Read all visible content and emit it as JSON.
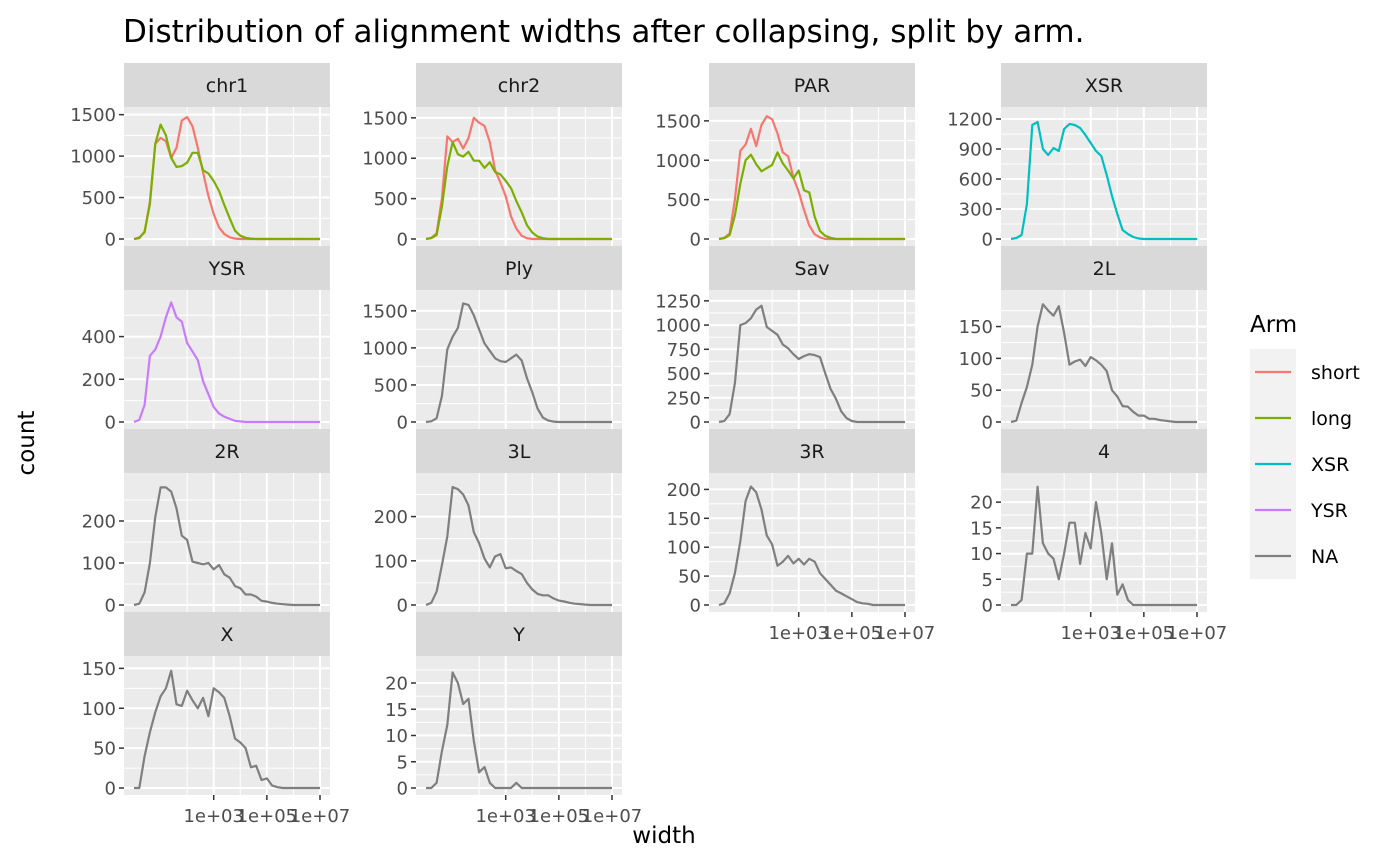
{
  "chart_data": {
    "type": "line",
    "title": "Distribution of alignment widths after collapsing, split by arm.",
    "xlabel": "width",
    "ylabel": "count",
    "x_scale": "log10",
    "x_range_log10": [
      0.0,
      7.0
    ],
    "x_ticks": [
      1000,
      100000,
      10000000
    ],
    "x_tick_labels": [
      "1e+03",
      "1e+05",
      "1e+07"
    ],
    "grid": true,
    "legend": {
      "title": "Arm",
      "position": "right",
      "entries": [
        "short",
        "long",
        "XSR",
        "YSR",
        "NA"
      ]
    },
    "colors": {
      "short": "#F8766D",
      "long": "#7CAE00",
      "XSR": "#00BFC4",
      "YSR": "#C77CFF",
      "NA": "#7F7F7F",
      "panel_bg": "#EBEBEB",
      "strip_bg": "#D9D9D9",
      "grid": "#FFFFFF"
    },
    "x_log10": [
      0.0,
      0.2,
      0.4,
      0.6,
      0.8,
      1.0,
      1.2,
      1.4,
      1.6,
      1.8,
      2.0,
      2.2,
      2.4,
      2.6,
      2.8,
      3.0,
      3.2,
      3.4,
      3.6,
      3.8,
      4.0,
      4.2,
      4.4,
      4.6,
      4.8,
      5.0,
      5.2,
      5.4,
      5.6,
      5.8,
      6.0,
      6.2,
      6.4,
      6.6,
      6.8,
      7.0
    ],
    "panels": [
      {
        "name": "chr1",
        "ylim": [
          0,
          1520
        ],
        "yticks": [
          0,
          500,
          1000,
          1500
        ],
        "x_axis": false,
        "series": [
          {
            "name": "short",
            "values": [
              0,
              20,
              80,
              450,
              1150,
              1220,
              1180,
              980,
              1100,
              1430,
              1470,
              1360,
              1100,
              800,
              520,
              300,
              140,
              60,
              20,
              5,
              0,
              0,
              0,
              0,
              0,
              0,
              0,
              0,
              0,
              0,
              0,
              0,
              0,
              0,
              0,
              0
            ]
          },
          {
            "name": "long",
            "values": [
              0,
              10,
              90,
              420,
              1150,
              1380,
              1250,
              980,
              870,
              880,
              920,
              1040,
              1040,
              830,
              790,
              700,
              580,
              410,
              250,
              100,
              40,
              15,
              5,
              0,
              0,
              0,
              0,
              0,
              0,
              0,
              0,
              0,
              0,
              0,
              0,
              0
            ]
          }
        ]
      },
      {
        "name": "chr2",
        "ylim": [
          0,
          1560
        ],
        "yticks": [
          0,
          500,
          1000,
          1500
        ],
        "x_axis": false,
        "series": [
          {
            "name": "short",
            "values": [
              0,
              15,
              70,
              500,
              1270,
              1200,
              1240,
              1120,
              1250,
              1500,
              1440,
              1400,
              1200,
              850,
              700,
              530,
              280,
              130,
              40,
              10,
              0,
              0,
              0,
              0,
              0,
              0,
              0,
              0,
              0,
              0,
              0,
              0,
              0,
              0,
              0,
              0
            ]
          },
          {
            "name": "long",
            "values": [
              0,
              10,
              50,
              400,
              900,
              1200,
              1050,
              1020,
              1080,
              970,
              970,
              880,
              950,
              830,
              800,
              720,
              630,
              470,
              330,
              170,
              80,
              30,
              10,
              0,
              0,
              0,
              0,
              0,
              0,
              0,
              0,
              0,
              0,
              0,
              0,
              0
            ]
          }
        ]
      },
      {
        "name": "PAR",
        "ylim": [
          0,
          1600
        ],
        "yticks": [
          0,
          500,
          1000,
          1500
        ],
        "x_axis": false,
        "series": [
          {
            "name": "short",
            "values": [
              0,
              15,
              70,
              500,
              1120,
              1200,
              1400,
              1180,
              1450,
              1560,
              1520,
              1340,
              1100,
              1050,
              780,
              600,
              370,
              170,
              60,
              20,
              0,
              0,
              0,
              0,
              0,
              0,
              0,
              0,
              0,
              0,
              0,
              0,
              0,
              0,
              0,
              0
            ]
          },
          {
            "name": "long",
            "values": [
              0,
              10,
              50,
              300,
              700,
              1000,
              1070,
              950,
              860,
              900,
              940,
              1100,
              960,
              870,
              770,
              870,
              620,
              590,
              280,
              100,
              40,
              15,
              0,
              0,
              0,
              0,
              0,
              0,
              0,
              0,
              0,
              0,
              0,
              0,
              0,
              0
            ]
          }
        ]
      },
      {
        "name": "XSR",
        "ylim": [
          0,
          1260
        ],
        "yticks": [
          0,
          300,
          600,
          900,
          1200
        ],
        "x_axis": false,
        "series": [
          {
            "name": "XSR",
            "values": [
              0,
              10,
              40,
              350,
              1140,
              1170,
              900,
              840,
              910,
              880,
              1100,
              1150,
              1140,
              1110,
              1040,
              960,
              880,
              830,
              640,
              430,
              250,
              90,
              50,
              20,
              5,
              0,
              0,
              0,
              0,
              0,
              0,
              0,
              0,
              0,
              0,
              0
            ]
          }
        ]
      },
      {
        "name": "YSR",
        "ylim": [
          0,
          590
        ],
        "yticks": [
          0,
          200,
          400
        ],
        "x_axis": false,
        "series": [
          {
            "name": "YSR",
            "values": [
              0,
              10,
              80,
              310,
              340,
              400,
              490,
              560,
              490,
              470,
              370,
              330,
              290,
              190,
              130,
              70,
              40,
              25,
              15,
              5,
              3,
              0,
              0,
              0,
              0,
              0,
              0,
              0,
              0,
              0,
              0,
              0,
              0,
              0,
              0,
              0
            ]
          }
        ]
      },
      {
        "name": "Ply",
        "ylim": [
          0,
          1700
        ],
        "yticks": [
          0,
          500,
          1000,
          1500
        ],
        "x_axis": false,
        "series": [
          {
            "name": "NA",
            "values": [
              0,
              10,
              50,
              350,
              980,
              1150,
              1270,
              1600,
              1580,
              1440,
              1250,
              1060,
              960,
              860,
              820,
              810,
              860,
              910,
              830,
              590,
              400,
              180,
              60,
              20,
              5,
              0,
              0,
              0,
              0,
              0,
              0,
              0,
              0,
              0,
              0,
              0
            ]
          }
        ]
      },
      {
        "name": "Sav",
        "ylim": [
          0,
          1300
        ],
        "yticks": [
          0,
          250,
          500,
          750,
          1000,
          1250
        ],
        "x_axis": false,
        "series": [
          {
            "name": "NA",
            "values": [
              0,
              10,
              80,
              400,
              1000,
              1020,
              1070,
              1160,
              1200,
              980,
              940,
              900,
              800,
              760,
              700,
              650,
              680,
              700,
              690,
              670,
              500,
              340,
              240,
              110,
              40,
              10,
              0,
              0,
              0,
              0,
              0,
              0,
              0,
              0,
              0,
              0
            ]
          }
        ]
      },
      {
        "name": "2L",
        "ylim": [
          0,
          198
        ],
        "yticks": [
          0,
          50,
          100,
          150
        ],
        "x_axis": false,
        "series": [
          {
            "name": "NA",
            "values": [
              0,
              2,
              30,
              55,
              90,
              150,
              185,
              175,
              167,
              182,
              140,
              90,
              95,
              98,
              88,
              102,
              97,
              90,
              80,
              50,
              40,
              25,
              24,
              16,
              10,
              10,
              5,
              5,
              3,
              2,
              1,
              0,
              0,
              0,
              0,
              0
            ]
          }
        ]
      },
      {
        "name": "2R",
        "ylim": [
          0,
          300
        ],
        "yticks": [
          0,
          100,
          200
        ],
        "x_axis": false,
        "series": [
          {
            "name": "NA",
            "values": [
              0,
              3,
              30,
              100,
              210,
              280,
              280,
              270,
              230,
              165,
              155,
              103,
              100,
              97,
              100,
              85,
              95,
              73,
              65,
              45,
              40,
              25,
              25,
              20,
              10,
              8,
              5,
              3,
              2,
              1,
              0,
              0,
              0,
              0,
              0,
              0
            ]
          }
        ]
      },
      {
        "name": "3L",
        "ylim": [
          0,
          285
        ],
        "yticks": [
          0,
          100,
          200
        ],
        "x_axis": false,
        "series": [
          {
            "name": "NA",
            "values": [
              0,
              5,
              30,
              90,
              155,
              267,
              262,
              250,
              225,
              165,
              140,
              105,
              85,
              110,
              115,
              83,
              85,
              77,
              70,
              50,
              35,
              25,
              22,
              22,
              15,
              10,
              8,
              5,
              3,
              2,
              1,
              0,
              0,
              0,
              0,
              0
            ]
          }
        ]
      },
      {
        "name": "3R",
        "ylim": [
          0,
          218
        ],
        "yticks": [
          0,
          50,
          100,
          150,
          200
        ],
        "x_axis": true,
        "series": [
          {
            "name": "NA",
            "values": [
              0,
              3,
              20,
              55,
              110,
              180,
              205,
              195,
              165,
              120,
              105,
              68,
              75,
              85,
              72,
              80,
              70,
              80,
              75,
              55,
              45,
              35,
              25,
              20,
              15,
              10,
              5,
              3,
              2,
              0,
              0,
              0,
              0,
              0,
              0,
              0
            ]
          }
        ]
      },
      {
        "name": "4",
        "ylim": [
          0,
          24.5
        ],
        "yticks": [
          0,
          5,
          10,
          15,
          20
        ],
        "x_axis": true,
        "series": [
          {
            "name": "NA",
            "values": [
              0,
              0,
              1,
              10,
              10,
              23,
              12,
              10,
              9,
              5,
              10,
              16,
              16,
              8,
              14,
              11,
              20,
              14,
              5,
              12,
              2,
              4,
              1,
              0,
              0,
              0,
              0,
              0,
              0,
              0,
              0,
              0,
              0,
              0,
              0,
              0
            ]
          }
        ]
      },
      {
        "name": "X",
        "ylim": [
          0,
          158
        ],
        "yticks": [
          0,
          50,
          100,
          150
        ],
        "x_axis": true,
        "series": [
          {
            "name": "NA",
            "values": [
              0,
              0,
              40,
              70,
              95,
              115,
              125,
              147,
              105,
              103,
              122,
              110,
              100,
              113,
              90,
              125,
              120,
              113,
              90,
              62,
              57,
              50,
              26,
              28,
              10,
              12,
              3,
              1,
              0,
              0,
              0,
              0,
              0,
              0,
              0,
              0
            ]
          }
        ]
      },
      {
        "name": "Y",
        "ylim": [
          0,
          24
        ],
        "yticks": [
          0,
          5,
          10,
          15,
          20
        ],
        "x_axis": true,
        "series": [
          {
            "name": "NA",
            "values": [
              0,
              0,
              1,
              7,
              12,
              22,
              20,
              16,
              17,
              9,
              3,
              4,
              1,
              0,
              0,
              0,
              0,
              1,
              0,
              0,
              0,
              0,
              0,
              0,
              0,
              0,
              0,
              0,
              0,
              0,
              0,
              0,
              0,
              0,
              0,
              0
            ]
          }
        ]
      }
    ]
  }
}
